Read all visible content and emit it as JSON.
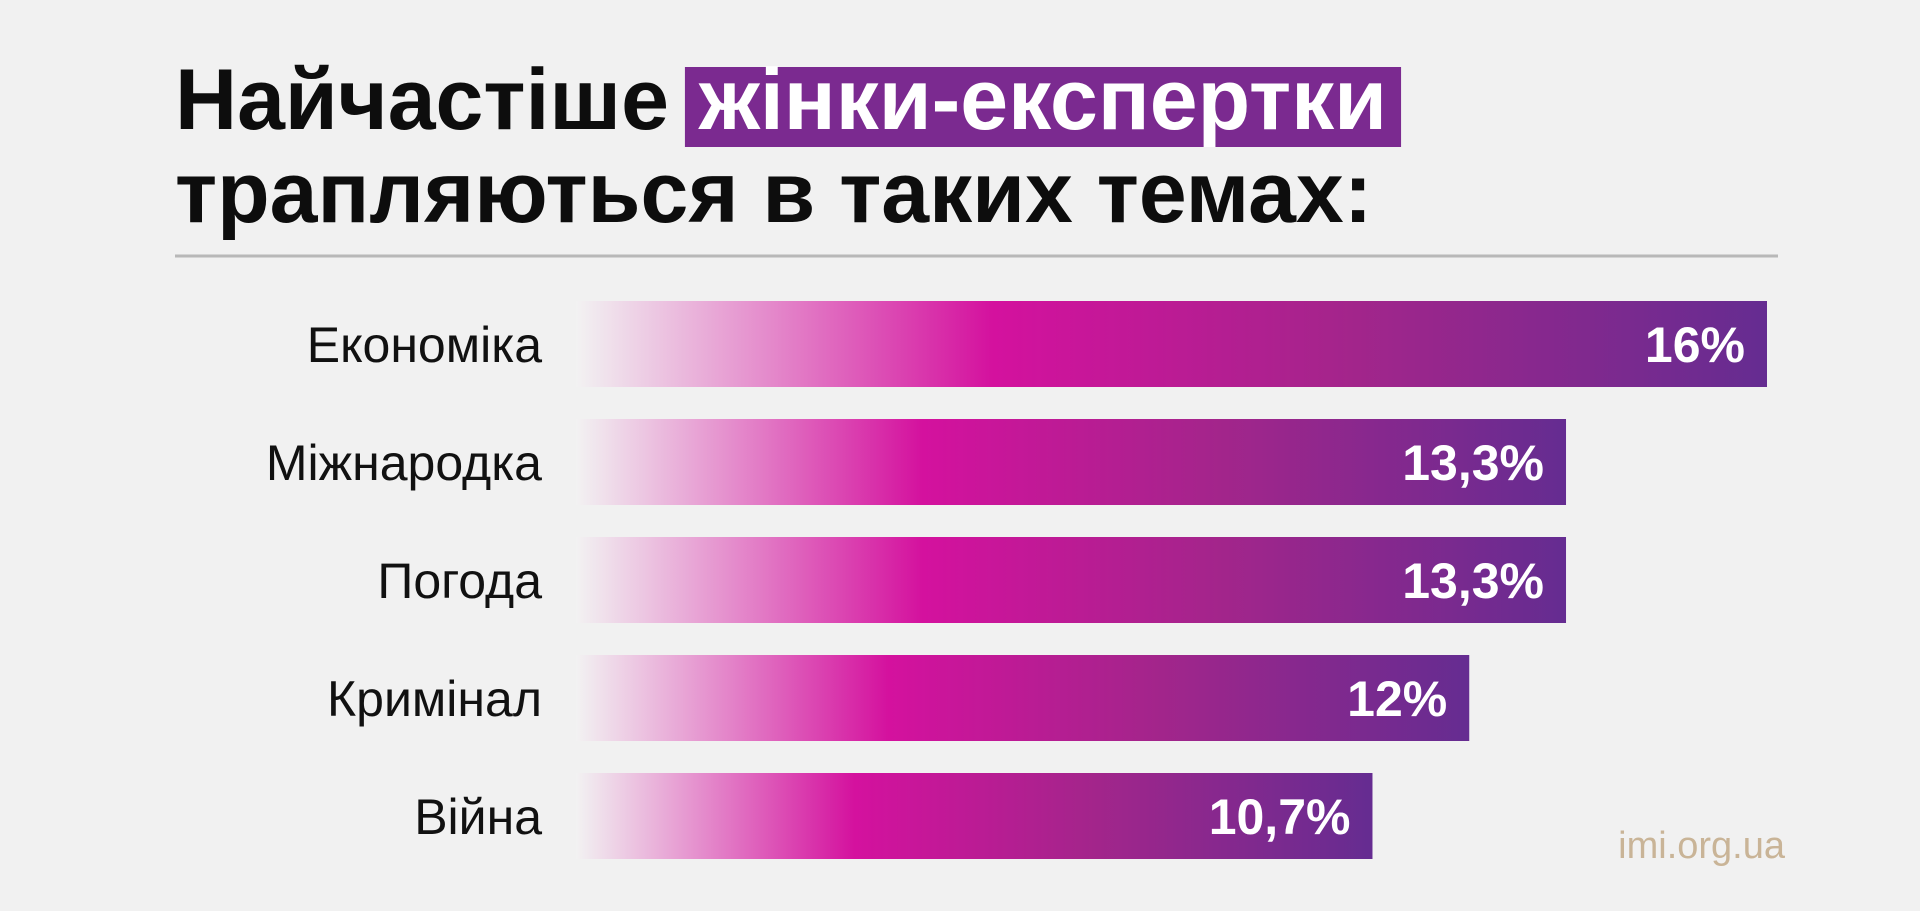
{
  "chart_data": {
    "type": "bar",
    "orientation": "horizontal",
    "title": "Найчастіше",
    "title_highlight": "жінки-експертки",
    "title_end": "трапляються в таких темах:",
    "categories": [
      "Економіка",
      "Міжнародка",
      "Погода",
      "Кримінал",
      "Війна"
    ],
    "values": [
      16,
      13.3,
      13.3,
      12,
      10.7
    ],
    "value_labels": [
      "16%",
      "13,3%",
      "13,3%",
      "12%",
      "10,7%"
    ],
    "colors": [
      "#f2f2f2",
      "#d4119e",
      "#a3258b",
      "#652c91"
    ],
    "highlight_color": "#7b2a90",
    "source": "imi.org.ua"
  }
}
